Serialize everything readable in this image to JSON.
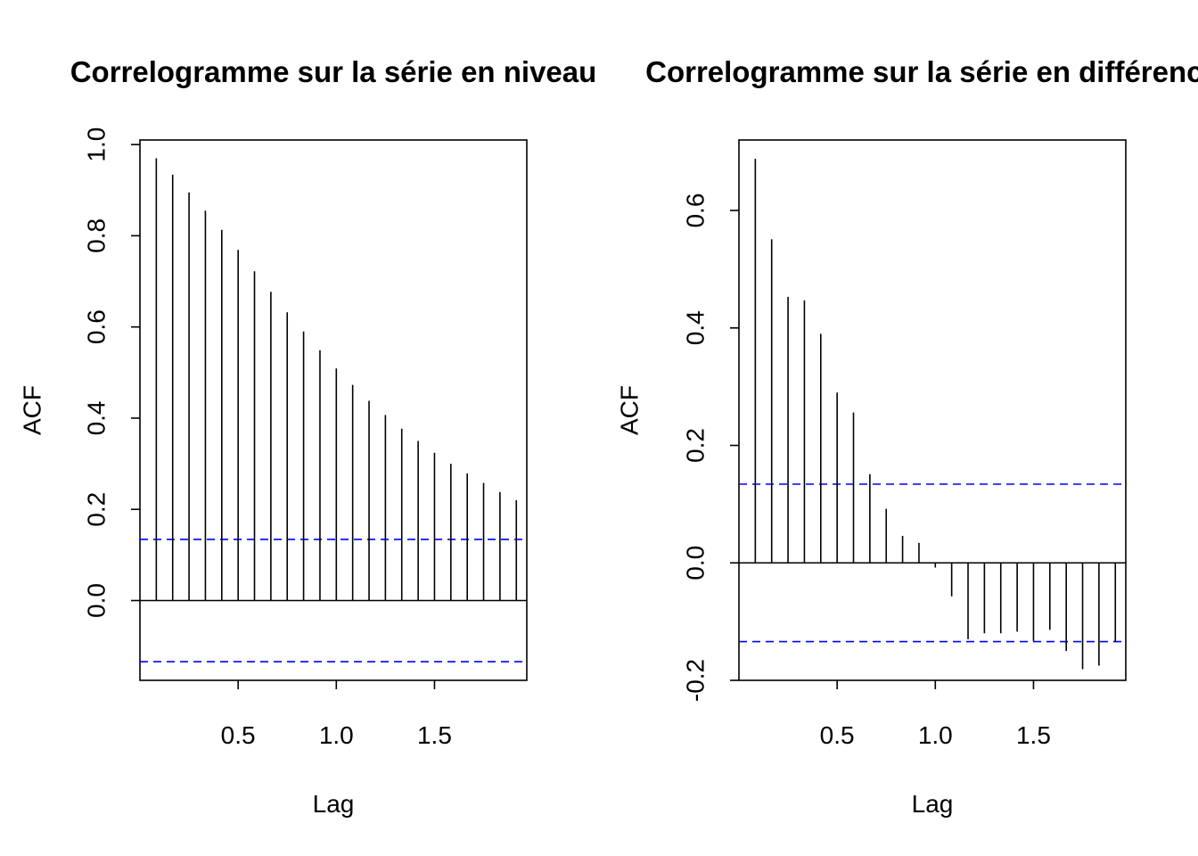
{
  "colors": {
    "bars": "#000000",
    "ci_lines": "#0000ff",
    "frame": "#000000"
  },
  "chart_data": [
    {
      "type": "bar",
      "subtype": "acf-correlogram",
      "title": "Correlogramme sur la série en niveau",
      "xlabel": "Lag",
      "ylabel": "ACF",
      "xlim": [
        0.0,
        1.97
      ],
      "ylim": [
        -0.175,
        1.01
      ],
      "xticks": [
        0.5,
        1.0,
        1.5
      ],
      "xtick_labels": [
        "0.5",
        "1.0",
        "1.5"
      ],
      "yticks": [
        0.0,
        0.2,
        0.4,
        0.6,
        0.8,
        1.0
      ],
      "ytick_labels": [
        "0.0",
        "0.2",
        "0.4",
        "0.6",
        "0.8",
        "1.0"
      ],
      "zero_line": true,
      "confidence_bounds": [
        0.134,
        -0.134
      ],
      "lags": [
        0.0833,
        0.1667,
        0.25,
        0.3333,
        0.4167,
        0.5,
        0.5833,
        0.6667,
        0.75,
        0.8333,
        0.9167,
        1.0,
        1.0833,
        1.1667,
        1.25,
        1.3333,
        1.4167,
        1.5,
        1.5833,
        1.6667,
        1.75,
        1.8333,
        1.9167
      ],
      "values": [
        0.97,
        0.934,
        0.895,
        0.855,
        0.813,
        0.769,
        0.722,
        0.677,
        0.632,
        0.59,
        0.549,
        0.509,
        0.473,
        0.438,
        0.407,
        0.377,
        0.35,
        0.324,
        0.3,
        0.279,
        0.258,
        0.238,
        0.22
      ]
    },
    {
      "type": "bar",
      "subtype": "acf-correlogram",
      "title": "Correlogramme sur la série en différence",
      "xlabel": "Lag",
      "ylabel": "ACF",
      "xlim": [
        0.0,
        1.97
      ],
      "ylim": [
        -0.2,
        0.72
      ],
      "xticks": [
        0.5,
        1.0,
        1.5
      ],
      "xtick_labels": [
        "0.5",
        "1.0",
        "1.5"
      ],
      "yticks": [
        -0.2,
        0.0,
        0.2,
        0.4,
        0.6
      ],
      "ytick_labels": [
        "-0.2",
        "0.0",
        "0.2",
        "0.4",
        "0.6"
      ],
      "zero_line": true,
      "confidence_bounds": [
        0.134,
        -0.134
      ],
      "lags": [
        0.0833,
        0.1667,
        0.25,
        0.3333,
        0.4167,
        0.5,
        0.5833,
        0.6667,
        0.75,
        0.8333,
        0.9167,
        1.0,
        1.0833,
        1.1667,
        1.25,
        1.3333,
        1.4167,
        1.5,
        1.5833,
        1.6667,
        1.75,
        1.8333,
        1.9167
      ],
      "values": [
        0.688,
        0.551,
        0.453,
        0.447,
        0.39,
        0.29,
        0.256,
        0.151,
        0.092,
        0.046,
        0.034,
        -0.008,
        -0.057,
        -0.13,
        -0.12,
        -0.12,
        -0.117,
        -0.133,
        -0.114,
        -0.15,
        -0.181,
        -0.175,
        -0.135
      ]
    }
  ]
}
